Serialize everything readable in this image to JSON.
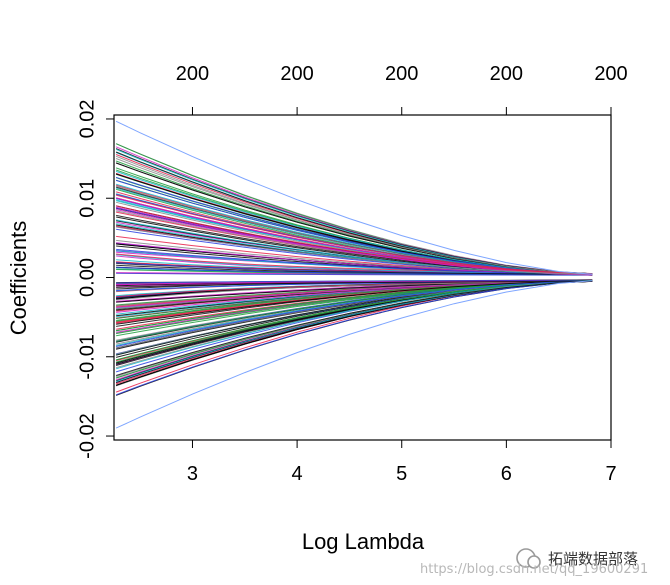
{
  "chart_data": {
    "type": "line",
    "title": "",
    "xlabel": "Log Lambda",
    "ylabel": "Coefficients",
    "xlim": [
      2.25,
      7.0
    ],
    "ylim": [
      -0.0205,
      0.0205
    ],
    "x_ticks": [
      3,
      4,
      5,
      6,
      7
    ],
    "y_ticks": [
      -0.02,
      -0.01,
      0.0,
      0.01,
      0.02
    ],
    "y_tick_labels": [
      "-0.02",
      "-0.01",
      "0.00",
      "0.01",
      "0.02"
    ],
    "top_axis": {
      "ticks": [
        3,
        4,
        5,
        6,
        7
      ],
      "labels": [
        "200",
        "200",
        "200",
        "200",
        "200"
      ]
    },
    "grid": false,
    "legend": "none",
    "path_log_lambda": [
      2.27,
      2.5,
      3.0,
      3.5,
      4.0,
      4.5,
      5.0,
      5.5,
      6.0,
      6.5,
      6.82
    ],
    "series_summary": {
      "count_shown": 200,
      "upper_envelope_start": 0.0197,
      "lower_envelope_start": -0.019,
      "converge_point": [
        6.82,
        0.0
      ],
      "colors": [
        "#000000",
        "#e8204a",
        "#1e9b3c",
        "#2a3fe0",
        "#12b8c8",
        "#d020c8",
        "#111111",
        "#8a8a8a"
      ]
    }
  },
  "watermark": {
    "brand": "拓端数据部落",
    "url": "https://blog.csdn.net/qq_19600291"
  }
}
